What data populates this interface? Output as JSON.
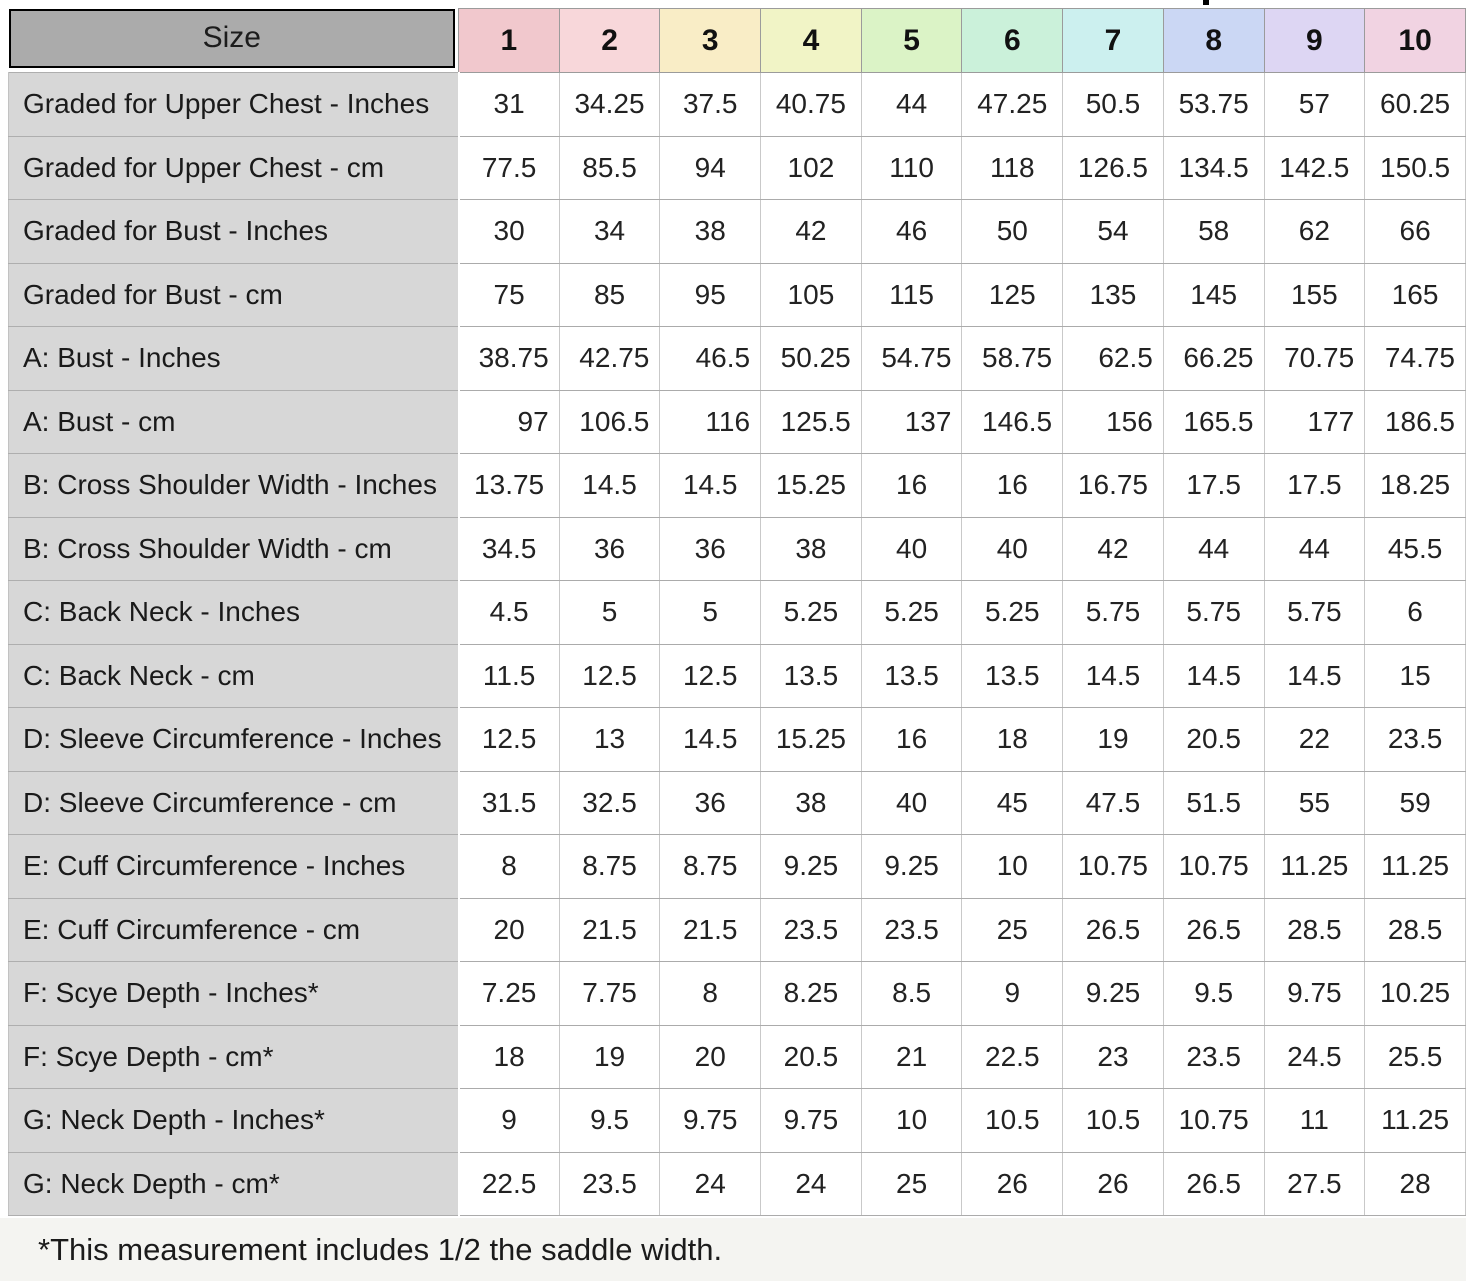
{
  "table": {
    "size_label": "Size",
    "columns": [
      {
        "label": "1",
        "color": "#f1c8cd"
      },
      {
        "label": "2",
        "color": "#f8d7da"
      },
      {
        "label": "3",
        "color": "#f9edc6"
      },
      {
        "label": "4",
        "color": "#f1f4c6"
      },
      {
        "label": "5",
        "color": "#dbf3c6"
      },
      {
        "label": "6",
        "color": "#cbf1da"
      },
      {
        "label": "7",
        "color": "#ccf0ef"
      },
      {
        "label": "8",
        "color": "#cbd7f4"
      },
      {
        "label": "9",
        "color": "#ddd6f3"
      },
      {
        "label": "10",
        "color": "#f1d3e2"
      }
    ],
    "rows": [
      {
        "label": "Graded for Upper Chest - Inches",
        "align": "center",
        "values": [
          "31",
          "34.25",
          "37.5",
          "40.75",
          "44",
          "47.25",
          "50.5",
          "53.75",
          "57",
          "60.25"
        ]
      },
      {
        "label": "Graded for Upper Chest - cm",
        "align": "center",
        "values": [
          "77.5",
          "85.5",
          "94",
          "102",
          "110",
          "118",
          "126.5",
          "134.5",
          "142.5",
          "150.5"
        ]
      },
      {
        "label": "Graded for Bust - Inches",
        "align": "center",
        "values": [
          "30",
          "34",
          "38",
          "42",
          "46",
          "50",
          "54",
          "58",
          "62",
          "66"
        ]
      },
      {
        "label": "Graded for Bust - cm",
        "align": "center",
        "values": [
          "75",
          "85",
          "95",
          "105",
          "115",
          "125",
          "135",
          "145",
          "155",
          "165"
        ]
      },
      {
        "label": "A: Bust - Inches",
        "align": "right",
        "values": [
          "38.75",
          "42.75",
          "46.5",
          "50.25",
          "54.75",
          "58.75",
          "62.5",
          "66.25",
          "70.75",
          "74.75"
        ]
      },
      {
        "label": "A: Bust - cm",
        "align": "right",
        "values": [
          "97",
          "106.5",
          "116",
          "125.5",
          "137",
          "146.5",
          "156",
          "165.5",
          "177",
          "186.5"
        ]
      },
      {
        "label": "B: Cross Shoulder Width - Inches",
        "align": "center",
        "values": [
          "13.75",
          "14.5",
          "14.5",
          "15.25",
          "16",
          "16",
          "16.75",
          "17.5",
          "17.5",
          "18.25"
        ]
      },
      {
        "label": "B: Cross Shoulder Width - cm",
        "align": "center",
        "values": [
          "34.5",
          "36",
          "36",
          "38",
          "40",
          "40",
          "42",
          "44",
          "44",
          "45.5"
        ]
      },
      {
        "label": "C: Back Neck - Inches",
        "align": "center",
        "values": [
          "4.5",
          "5",
          "5",
          "5.25",
          "5.25",
          "5.25",
          "5.75",
          "5.75",
          "5.75",
          "6"
        ]
      },
      {
        "label": "C: Back Neck - cm",
        "align": "center",
        "values": [
          "11.5",
          "12.5",
          "12.5",
          "13.5",
          "13.5",
          "13.5",
          "14.5",
          "14.5",
          "14.5",
          "15"
        ]
      },
      {
        "label": "D: Sleeve Circumference - Inches",
        "align": "center",
        "values": [
          "12.5",
          "13",
          "14.5",
          "15.25",
          "16",
          "18",
          "19",
          "20.5",
          "22",
          "23.5"
        ]
      },
      {
        "label": "D: Sleeve Circumference - cm",
        "align": "center",
        "values": [
          "31.5",
          "32.5",
          "36",
          "38",
          "40",
          "45",
          "47.5",
          "51.5",
          "55",
          "59"
        ]
      },
      {
        "label": "E: Cuff Circumference - Inches",
        "align": "center",
        "values": [
          "8",
          "8.75",
          "8.75",
          "9.25",
          "9.25",
          "10",
          "10.75",
          "10.75",
          "11.25",
          "11.25"
        ]
      },
      {
        "label": "E: Cuff Circumference - cm",
        "align": "center",
        "values": [
          "20",
          "21.5",
          "21.5",
          "23.5",
          "23.5",
          "25",
          "26.5",
          "26.5",
          "28.5",
          "28.5"
        ]
      },
      {
        "label": "F: Scye Depth - Inches*",
        "align": "center",
        "values": [
          "7.25",
          "7.75",
          "8",
          "8.25",
          "8.5",
          "9",
          "9.25",
          "9.5",
          "9.75",
          "10.25"
        ]
      },
      {
        "label": "F: Scye Depth - cm*",
        "align": "center",
        "values": [
          "18",
          "19",
          "20",
          "20.5",
          "21",
          "22.5",
          "23",
          "23.5",
          "24.5",
          "25.5"
        ]
      },
      {
        "label": "G: Neck Depth - Inches*",
        "align": "center",
        "values": [
          "9",
          "9.5",
          "9.75",
          "9.75",
          "10",
          "10.5",
          "10.5",
          "10.75",
          "11",
          "11.25"
        ]
      },
      {
        "label": "G: Neck Depth - cm*",
        "align": "center",
        "values": [
          "22.5",
          "23.5",
          "24",
          "24",
          "25",
          "26",
          "26",
          "26.5",
          "27.5",
          "28"
        ]
      }
    ]
  },
  "footnote": "*This measurement includes 1/2 the saddle width."
}
